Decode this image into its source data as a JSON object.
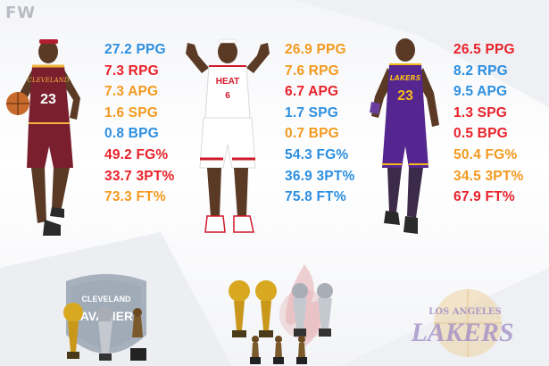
{
  "brand": {
    "logo_text": "FW"
  },
  "colors": {
    "blue": "#2d8fe0",
    "red": "#e8222a",
    "orange": "#f39a1f"
  },
  "columns": [
    {
      "team": "cavaliers",
      "stats": [
        {
          "value": "27.2",
          "label": "PPG",
          "color": "blue"
        },
        {
          "value": "7.3",
          "label": "RPG",
          "color": "red"
        },
        {
          "value": "7.3",
          "label": "APG",
          "color": "orange"
        },
        {
          "value": "1.6",
          "label": "SPG",
          "color": "orange"
        },
        {
          "value": "0.8",
          "label": "BPG",
          "color": "blue"
        },
        {
          "value": "49.2",
          "label": "FG%",
          "color": "red"
        },
        {
          "value": "33.7",
          "label": "3PT%",
          "color": "red"
        },
        {
          "value": "73.3",
          "label": "FT%",
          "color": "orange"
        }
      ]
    },
    {
      "team": "heat",
      "stats": [
        {
          "value": "26.9",
          "label": "PPG",
          "color": "orange"
        },
        {
          "value": "7.6",
          "label": "RPG",
          "color": "orange"
        },
        {
          "value": "6.7",
          "label": "APG",
          "color": "red"
        },
        {
          "value": "1.7",
          "label": "SPG",
          "color": "blue"
        },
        {
          "value": "0.7",
          "label": "BPG",
          "color": "orange"
        },
        {
          "value": "54.3",
          "label": "FG%",
          "color": "blue"
        },
        {
          "value": "36.9",
          "label": "3PT%",
          "color": "blue"
        },
        {
          "value": "75.8",
          "label": "FT%",
          "color": "blue"
        }
      ]
    },
    {
      "team": "lakers",
      "stats": [
        {
          "value": "26.5",
          "label": "PPG",
          "color": "red"
        },
        {
          "value": "8.2",
          "label": "RPG",
          "color": "blue"
        },
        {
          "value": "9.5",
          "label": "APG",
          "color": "blue"
        },
        {
          "value": "1.3",
          "label": "SPG",
          "color": "red"
        },
        {
          "value": "0.5",
          "label": "BPG",
          "color": "red"
        },
        {
          "value": "50.4",
          "label": "FG%",
          "color": "orange"
        },
        {
          "value": "34.5",
          "label": "3PT%",
          "color": "orange"
        },
        {
          "value": "67.9",
          "label": "FT%",
          "color": "red"
        }
      ]
    }
  ],
  "players": [
    {
      "team": "cavaliers",
      "jersey_name": "CLEVELAND",
      "number": "23",
      "jersey_color": "#7a1f2e",
      "trim_color": "#f2b33d"
    },
    {
      "team": "heat",
      "jersey_name": "HEAT",
      "number": "6",
      "jersey_color": "#ffffff",
      "trim_color": "#d0192b"
    },
    {
      "team": "lakers",
      "jersey_name": "LAKERS",
      "number": "23",
      "jersey_color": "#55268f",
      "trim_color": "#f2b81c"
    }
  ],
  "team_logos": {
    "cavaliers": {
      "top_text": "CLEVELAND",
      "main_text": "CAVALIERS"
    },
    "lakers": {
      "top_text": "LOS ANGELES",
      "main_text": "LAKERS"
    }
  }
}
